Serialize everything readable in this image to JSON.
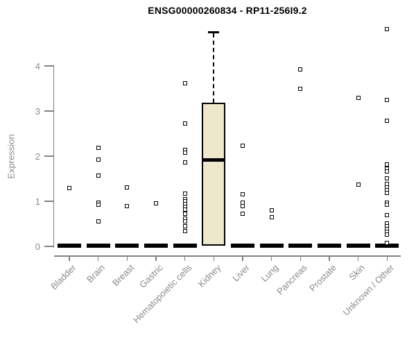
{
  "chart_data": {
    "type": "boxplot",
    "title": "ENSG00000260834 - RP11-256I9.2",
    "ylabel": "Expression",
    "xlabel": "",
    "ylim": [
      0,
      4.85
    ],
    "yticks": [
      0,
      1,
      2,
      3,
      4
    ],
    "grid": false,
    "legend": "none",
    "categories": [
      "Bladder",
      "Brain",
      "Breast",
      "Gastric",
      "Hematopoietic cells",
      "Kidney",
      "Liver",
      "Lung",
      "Pancreas",
      "Prostate",
      "Skin",
      "Unknown / Other"
    ],
    "boxes": [
      {
        "category": "Bladder",
        "median": 0,
        "q1": 0,
        "q3": 0,
        "whisker_low": 0,
        "whisker_high": 0,
        "outliers": [
          1.29
        ]
      },
      {
        "category": "Brain",
        "median": 0,
        "q1": 0,
        "q3": 0,
        "whisker_low": 0,
        "whisker_high": 0,
        "outliers": [
          2.18,
          1.92,
          1.57,
          0.97,
          0.92,
          0.55
        ]
      },
      {
        "category": "Breast",
        "median": 0,
        "q1": 0,
        "q3": 0,
        "whisker_low": 0,
        "whisker_high": 0,
        "outliers": [
          1.31,
          0.89
        ]
      },
      {
        "category": "Gastric",
        "median": 0,
        "q1": 0,
        "q3": 0,
        "whisker_low": 0,
        "whisker_high": 0,
        "outliers": [
          0.96
        ]
      },
      {
        "category": "Hematopoietic cells",
        "median": 0,
        "q1": 0,
        "q3": 0,
        "whisker_low": 0,
        "whisker_high": 0,
        "outliers": [
          3.62,
          2.72,
          2.14,
          2.08,
          1.86,
          1.17,
          1.05,
          1.0,
          0.94,
          0.88,
          0.82,
          0.73,
          0.62,
          0.56,
          0.44,
          0.34
        ]
      },
      {
        "category": "Kidney",
        "median": 1.92,
        "q1": 0.02,
        "q3": 3.18,
        "whisker_low": 0.02,
        "whisker_high": 4.75,
        "outliers": []
      },
      {
        "category": "Liver",
        "median": 0,
        "q1": 0,
        "q3": 0,
        "whisker_low": 0,
        "whisker_high": 0,
        "outliers": [
          2.23,
          1.16,
          0.97,
          0.89,
          0.73
        ]
      },
      {
        "category": "Lung",
        "median": 0,
        "q1": 0,
        "q3": 0,
        "whisker_low": 0,
        "whisker_high": 0,
        "outliers": [
          0.8,
          0.64
        ]
      },
      {
        "category": "Pancreas",
        "median": 0,
        "q1": 0,
        "q3": 0,
        "whisker_low": 0,
        "whisker_high": 0,
        "outliers": [
          3.92,
          3.49
        ]
      },
      {
        "category": "Prostate",
        "median": 0,
        "q1": 0,
        "q3": 0,
        "whisker_low": 0,
        "whisker_high": 0,
        "outliers": []
      },
      {
        "category": "Skin",
        "median": 0,
        "q1": 0,
        "q3": 0,
        "whisker_low": 0,
        "whisker_high": 0,
        "outliers": [
          3.29,
          1.37
        ]
      },
      {
        "category": "Unknown / Other",
        "median": 0,
        "q1": 0,
        "q3": 0,
        "whisker_low": 0,
        "whisker_high": 0,
        "outliers": [
          4.81,
          3.24,
          2.79,
          1.82,
          1.72,
          1.66,
          1.51,
          1.38,
          1.31,
          1.25,
          1.19,
          0.97,
          0.93,
          0.69,
          0.51,
          0.45,
          0.39,
          0.33,
          0.26,
          0.08
        ]
      }
    ]
  },
  "colors": {
    "box_fill": "#ede7cb",
    "box_border": "#000000",
    "median": "#000000",
    "axis": "#808080",
    "tick_text": "#8a8a8a",
    "title_text": "#000000",
    "point_fill": "#ffffff"
  }
}
